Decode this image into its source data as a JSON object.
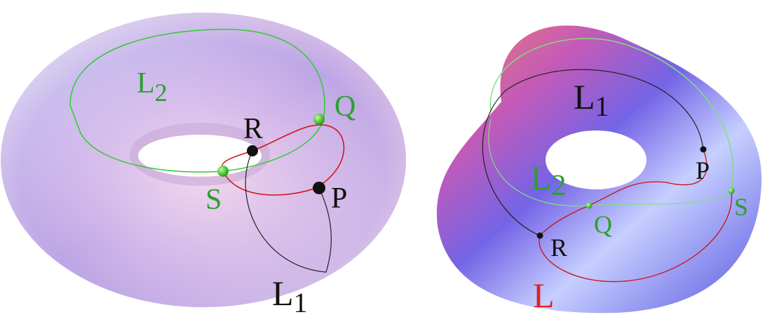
{
  "left_figure": {
    "labels": [
      {
        "text": "L",
        "sub": "2"
      },
      {
        "text": "Q"
      },
      {
        "text": "R"
      },
      {
        "text": "S"
      },
      {
        "text": "P"
      },
      {
        "text": "L",
        "sub": "1"
      }
    ]
  },
  "right_figure": {
    "labels": [
      {
        "text": "L",
        "sub": "1"
      },
      {
        "text": "L",
        "sub": "2"
      },
      {
        "text": "P"
      },
      {
        "text": "S"
      },
      {
        "text": "Q"
      },
      {
        "text": "R"
      },
      {
        "text": "L"
      }
    ]
  }
}
